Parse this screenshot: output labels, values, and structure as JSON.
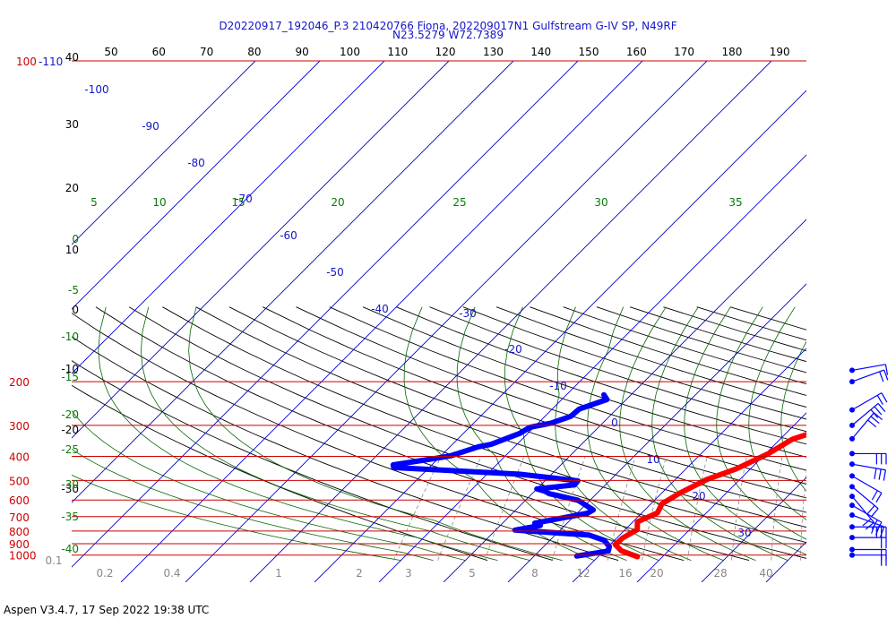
{
  "header": {
    "title_line1": "D20220917_192046_P.3 210420766 Fiona, 202209017N1 Gulfstream G-IV SP, N49RF",
    "title_line2": "N23.5279 W72.7389"
  },
  "footer": {
    "text": "Aspen V3.4.7, 17 Sep 2022  19:38 UTC"
  },
  "colors": {
    "temperature": "#ff0000",
    "dewpoint": "#0000ff",
    "isobar": "#cc0000",
    "isotherm": "#0000cc",
    "dry_adiabat": "#000000",
    "moist_adiabat": "#006600",
    "mixing_ratio": "#888888",
    "wind_barb": "#0000ff"
  },
  "chart_data": {
    "type": "skew-t",
    "pressure_axis": {
      "labels": [
        "100-110",
        "200",
        "300",
        "400",
        "500",
        "600",
        "700",
        "800",
        "900",
        "1000"
      ],
      "values": [
        100,
        200,
        300,
        400,
        500,
        600,
        700,
        800,
        900,
        1000
      ],
      "scale": "log",
      "color": "#cc0000"
    },
    "top_labels": [
      "50",
      "60",
      "70",
      "80",
      "90",
      "100",
      "110",
      "120",
      "130",
      "140",
      "150",
      "160",
      "170",
      "180",
      "190"
    ],
    "left_black_labels": [
      "40",
      "30",
      "20",
      "10",
      "0",
      "-10",
      "-20",
      "-30"
    ],
    "left_green_labels": [
      "0",
      "-5",
      "-10",
      "-15",
      "-20",
      "-25",
      "-30",
      "-35",
      "-40"
    ],
    "isotherm_labels": [
      "-100",
      "-90",
      "-80",
      "-70",
      "-60",
      "-50",
      "-40",
      "-30",
      "-20",
      "-10",
      "0",
      "10",
      "20",
      "30"
    ],
    "moist_adiabat_labels": [
      "5",
      "10",
      "15",
      "20",
      "25",
      "30",
      "35"
    ],
    "mixing_ratio_labels": [
      "0.1",
      "0.2",
      "0.4",
      "1",
      "2",
      "3",
      "5",
      "8",
      "12",
      "16",
      "20",
      "28",
      "40"
    ],
    "temperature_profile": {
      "name": "temperature",
      "points": [
        [
          178,
          14.7
        ],
        [
          214,
          18.0
        ],
        [
          218,
          17.5
        ],
        [
          223,
          14.0
        ],
        [
          234,
          11.0
        ],
        [
          265,
          7.8
        ],
        [
          303,
          5.5
        ],
        [
          324,
          3.7
        ],
        [
          341,
          1.9
        ],
        [
          391,
          0.4
        ],
        [
          449,
          -2.2
        ],
        [
          496,
          -5.1
        ],
        [
          567,
          -7.3
        ],
        [
          621,
          -8.3
        ],
        [
          676,
          -7.6
        ],
        [
          735,
          -9.3
        ],
        [
          790,
          -8.1
        ],
        [
          854,
          -9.1
        ],
        [
          908,
          -9.2
        ],
        [
          961,
          -7.3
        ],
        [
          1015,
          -3.9
        ]
      ]
    },
    "dewpoint_profile": {
      "name": "dewpoint",
      "points": [
        [
          226,
          -34.2
        ],
        [
          236,
          -33.0
        ],
        [
          258,
          -35.8
        ],
        [
          276,
          -36.0
        ],
        [
          294,
          -38.0
        ],
        [
          305,
          -40.6
        ],
        [
          324,
          -41.3
        ],
        [
          358,
          -44.0
        ],
        [
          366,
          -45.6
        ],
        [
          398,
          -48.5
        ],
        [
          408,
          -50.6
        ],
        [
          433,
          -56.0
        ],
        [
          444,
          -55.5
        ],
        [
          472,
          -35.0
        ],
        [
          502,
          -24.9
        ],
        [
          521,
          -24.8
        ],
        [
          541,
          -30.0
        ],
        [
          553,
          -28.4
        ],
        [
          566,
          -27.3
        ],
        [
          601,
          -21.9
        ],
        [
          658,
          -18.0
        ],
        [
          678,
          -18.4
        ],
        [
          744,
          -25.0
        ],
        [
          760,
          -23.8
        ],
        [
          793,
          -27.0
        ],
        [
          831,
          -14.7
        ],
        [
          872,
          -11.6
        ],
        [
          925,
          -9.8
        ],
        [
          963,
          -9.3
        ],
        [
          1009,
          -13.4
        ]
      ]
    },
    "wind_barbs": [
      {
        "pressure": 180,
        "direction": 80,
        "speed": 10
      },
      {
        "pressure": 200,
        "direction": 70,
        "speed": 15
      },
      {
        "pressure": 260,
        "direction": 60,
        "speed": 20
      },
      {
        "pressure": 300,
        "direction": 50,
        "speed": 25
      },
      {
        "pressure": 340,
        "direction": 40,
        "speed": 30
      },
      {
        "pressure": 390,
        "direction": 90,
        "speed": 25
      },
      {
        "pressure": 430,
        "direction": 100,
        "speed": 25
      },
      {
        "pressure": 480,
        "direction": 120,
        "speed": 20
      },
      {
        "pressure": 530,
        "direction": 130,
        "speed": 15
      },
      {
        "pressure": 580,
        "direction": 140,
        "speed": 20
      },
      {
        "pressure": 630,
        "direction": 120,
        "speed": 20
      },
      {
        "pressure": 690,
        "direction": 110,
        "speed": 25
      },
      {
        "pressure": 770,
        "direction": 90,
        "speed": 25
      },
      {
        "pressure": 850,
        "direction": 90,
        "speed": 20
      },
      {
        "pressure": 950,
        "direction": 90,
        "speed": 15
      },
      {
        "pressure": 1000,
        "direction": 90,
        "speed": 15
      }
    ]
  }
}
